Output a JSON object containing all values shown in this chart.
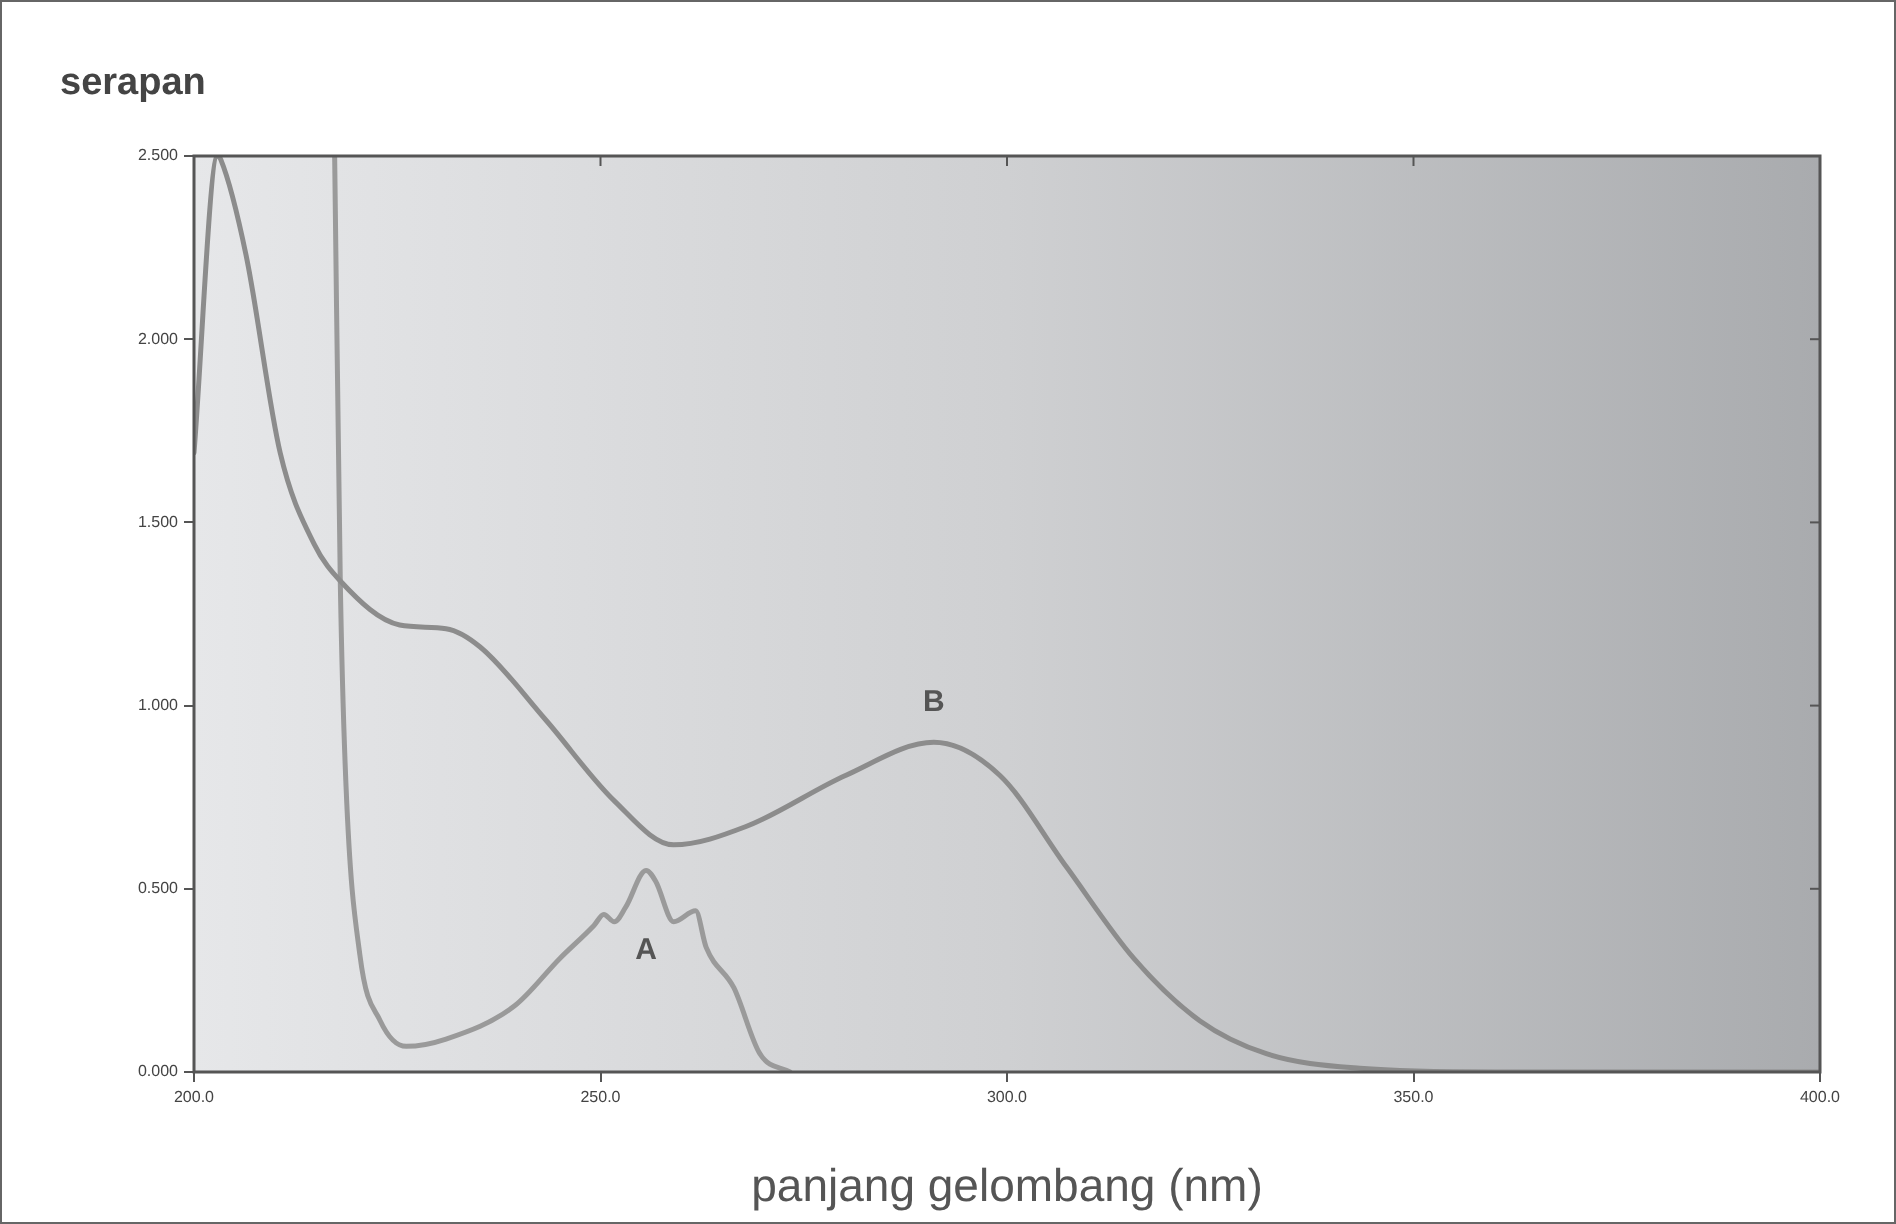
{
  "chart_data": {
    "type": "line",
    "xlabel": "panjang gelombang (nm)",
    "ylabel": "serapan",
    "xlim": [
      200,
      400
    ],
    "ylim": [
      0,
      2.5
    ],
    "xticks": [
      {
        "value": 200,
        "label": "200.0"
      },
      {
        "value": 250,
        "label": "250.0"
      },
      {
        "value": 300,
        "label": "300.0"
      },
      {
        "value": 350,
        "label": "350.0"
      },
      {
        "value": 400,
        "label": "400.0"
      }
    ],
    "yticks": [
      {
        "value": 0,
        "label": "0.000"
      },
      {
        "value": 0.5,
        "label": "0.500"
      },
      {
        "value": 1,
        "label": "1.000"
      },
      {
        "value": 1.5,
        "label": "1.500"
      },
      {
        "value": 2,
        "label": "2.000"
      },
      {
        "value": 2.5,
        "label": "2.500"
      }
    ],
    "grid": false,
    "legend": false,
    "marker": "none",
    "line_style": "solid",
    "series": [
      {
        "name": "B",
        "color": "#8c8c8c",
        "x": [
          200,
          202.9,
          203.3,
          206.4,
          210.6,
          214.8,
          218.0,
          225.3,
          231.0,
          235.2,
          243.3,
          251.7,
          259.0,
          267.9,
          280.2,
          291.0,
          299.1,
          307.3,
          315.6,
          323.7,
          331.9,
          343.4,
          360,
          400
        ],
        "values": [
          1.69,
          2.5,
          2.49,
          2.23,
          1.69,
          1.44,
          1.34,
          1.22,
          1.21,
          1.16,
          0.96,
          0.74,
          0.62,
          0.67,
          0.81,
          0.9,
          0.81,
          0.56,
          0.31,
          0.14,
          0.05,
          0.01,
          0,
          0
        ]
      },
      {
        "name": "A",
        "color": "#9a9a9a",
        "x": [
          217.3,
          218.0,
          218.7,
          220.4,
          222.9,
          226.1,
          231.0,
          239.4,
          245.0,
          249.2,
          250.4,
          251.7,
          253.1,
          255.6,
          256.8,
          259.0,
          261.7,
          263.0,
          266.4,
          269.6,
          273.3
        ],
        "values": [
          2.5,
          1.33,
          0.78,
          0.32,
          0.14,
          0.07,
          0.09,
          0.18,
          0.31,
          0.4,
          0.43,
          0.41,
          0.45,
          0.55,
          0.52,
          0.41,
          0.44,
          0.34,
          0.23,
          0.05,
          0
        ]
      }
    ]
  }
}
